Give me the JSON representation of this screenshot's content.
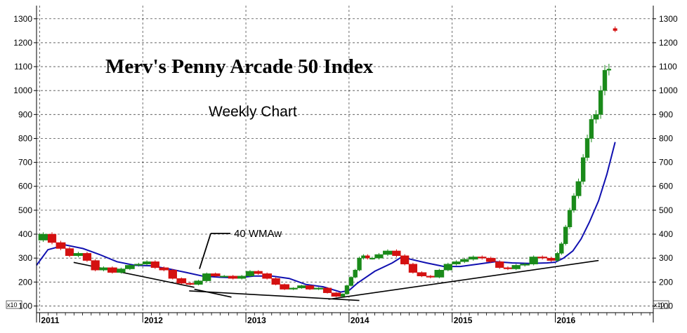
{
  "chart_data": {
    "type": "candlestick",
    "title": "Merv's Penny Arcade 50 Index",
    "subtitle": "Weekly Chart",
    "y_ticks": [
      100,
      200,
      300,
      400,
      500,
      600,
      700,
      800,
      900,
      1000,
      1100,
      1200,
      1300
    ],
    "ylim": [
      72,
      1355
    ],
    "y_scale_label_left": "x10",
    "y_scale_label_right": "x10",
    "x_ticks": [
      "2011",
      "2012",
      "2013",
      "2014",
      "2015",
      "2016"
    ],
    "x_range": [
      2010.97,
      2016.95
    ],
    "grid": true,
    "annotation": {
      "label": "40 WMAw",
      "x": 2012.55,
      "y": 255
    },
    "colors": {
      "up": "#1a8a1a",
      "down": "#d41010",
      "wma": "#1010b0",
      "trend": "#000000"
    },
    "close_series": {
      "x": [
        2010.99,
        2011.08,
        2011.16,
        2011.25,
        2011.33,
        2011.42,
        2011.5,
        2011.58,
        2011.66,
        2011.75,
        2011.83,
        2011.92,
        2012.0,
        2012.08,
        2012.16,
        2012.25,
        2012.33,
        2012.42,
        2012.5,
        2012.58,
        2012.66,
        2012.75,
        2012.83,
        2012.92,
        2013.0,
        2013.08,
        2013.16,
        2013.25,
        2013.33,
        2013.42,
        2013.5,
        2013.58,
        2013.66,
        2013.75,
        2013.83,
        2013.92,
        2013.96,
        2014.0,
        2014.04,
        2014.08,
        2014.12,
        2014.16,
        2014.2,
        2014.25,
        2014.33,
        2014.42,
        2014.5,
        2014.58,
        2014.66,
        2014.75,
        2014.83,
        2014.92,
        2015.0,
        2015.08,
        2015.16,
        2015.25,
        2015.33,
        2015.42,
        2015.5,
        2015.58,
        2015.66,
        2015.75,
        2015.83,
        2015.92,
        2016.0,
        2016.04,
        2016.08,
        2016.12,
        2016.16,
        2016.2,
        2016.25,
        2016.29,
        2016.33,
        2016.37,
        2016.42,
        2016.46,
        2016.5,
        2016.54
      ],
      "y": [
        375,
        400,
        365,
        340,
        310,
        320,
        290,
        250,
        260,
        240,
        255,
        270,
        275,
        285,
        260,
        250,
        215,
        195,
        190,
        205,
        235,
        225,
        225,
        215,
        225,
        245,
        235,
        215,
        190,
        170,
        175,
        185,
        170,
        175,
        155,
        140,
        150,
        185,
        220,
        250,
        300,
        310,
        300,
        300,
        315,
        330,
        310,
        275,
        240,
        225,
        220,
        250,
        275,
        285,
        295,
        305,
        300,
        285,
        260,
        255,
        270,
        275,
        305,
        300,
        290,
        320,
        360,
        430,
        500,
        560,
        620,
        720,
        800,
        880,
        900,
        1000,
        1085,
        1090
      ]
    },
    "last_candle": {
      "x": 2016.58,
      "open": 1260,
      "close": 1250,
      "high": 1268,
      "low": 1244
    },
    "wma_40": {
      "x": [
        2010.97,
        2011.08,
        2011.25,
        2011.42,
        2011.58,
        2011.75,
        2011.92,
        2012.08,
        2012.25,
        2012.42,
        2012.58,
        2012.75,
        2012.92,
        2013.08,
        2013.25,
        2013.42,
        2013.58,
        2013.75,
        2013.92,
        2014.0,
        2014.08,
        2014.25,
        2014.42,
        2014.5,
        2014.58,
        2014.75,
        2014.92,
        2015.08,
        2015.25,
        2015.42,
        2015.58,
        2015.75,
        2015.92,
        2016.0,
        2016.08,
        2016.17,
        2016.25,
        2016.33,
        2016.42,
        2016.5,
        2016.58
      ],
      "y": [
        270,
        335,
        355,
        340,
        315,
        285,
        270,
        268,
        255,
        240,
        225,
        220,
        218,
        225,
        225,
        215,
        190,
        180,
        158,
        165,
        195,
        245,
        280,
        302,
        297,
        280,
        265,
        265,
        275,
        285,
        280,
        278,
        280,
        283,
        300,
        330,
        380,
        450,
        540,
        650,
        785
      ]
    },
    "trendlines": [
      {
        "x1": 2011.33,
        "y1": 282,
        "x2": 2012.5,
        "y2": 178
      },
      {
        "x1": 2012.5,
        "y1": 170,
        "x2": 2012.86,
        "y2": 137
      },
      {
        "x1": 2012.45,
        "y1": 163,
        "x2": 2014.1,
        "y2": 123
      },
      {
        "x1": 2013.8,
        "y1": 128,
        "x2": 2016.42,
        "y2": 290
      }
    ]
  }
}
